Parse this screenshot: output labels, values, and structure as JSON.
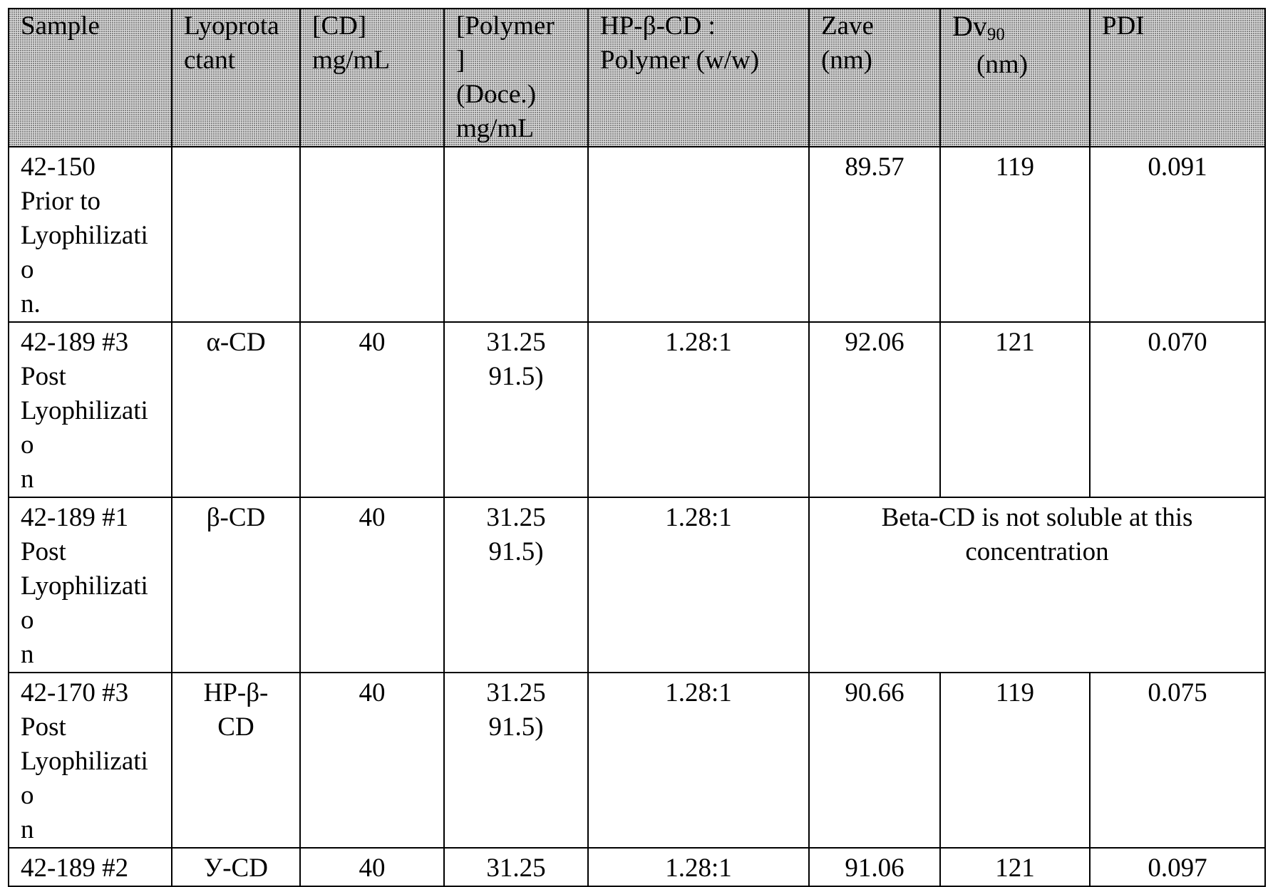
{
  "table": {
    "headers": {
      "sample": "Sample",
      "lyoprotectant_1": "Lyoprota",
      "lyoprotectant_2": "ctant",
      "cd_1": "[CD]",
      "cd_2": "mg/mL",
      "polymer_1": "[Polymer",
      "polymer_2": "]",
      "polymer_3": "(Doce.)",
      "polymer_4": "mg/mL",
      "ratio_1": "HP-β-CD :",
      "ratio_2": "Polymer (w/w)",
      "zave_1": "Zave",
      "zave_2": "(nm)",
      "dv_main": "Dv",
      "dv_sub": "90",
      "dv_unit": "(nm)",
      "pdi": "PDI"
    },
    "rows": [
      {
        "sample_1": "42-150",
        "sample_2": "Prior to",
        "sample_3": "Lyophilizatio",
        "sample_4": "n.",
        "lyoprotectant_1": "",
        "lyoprotectant_2": "",
        "cd": "",
        "polymer_1": "",
        "polymer_2": "",
        "ratio": "",
        "zave": "89.57",
        "dv90": "119",
        "pdi": "0.091"
      },
      {
        "sample_1": "42-189 #3",
        "sample_2": "Post",
        "sample_3": "Lyophilizatio",
        "sample_4": "n",
        "lyoprotectant_1": "α-CD",
        "lyoprotectant_2": "",
        "cd": "40",
        "polymer_1": "31.25",
        "polymer_2": "91.5)",
        "ratio": "1.28:1",
        "zave": "92.06",
        "dv90": "121",
        "pdi": "0.070"
      },
      {
        "sample_1": "42-189 #1",
        "sample_2": "Post",
        "sample_3": "Lyophilizatio",
        "sample_4": "n",
        "lyoprotectant_1": "β-CD",
        "lyoprotectant_2": "",
        "cd": "40",
        "polymer_1": "31.25",
        "polymer_2": "91.5)",
        "ratio": "1.28:1",
        "note_1": "Beta-CD is not soluble at this",
        "note_2": "concentration"
      },
      {
        "sample_1": "42-170 #3",
        "sample_2": "Post",
        "sample_3": "Lyophilizatio",
        "sample_4": "n",
        "lyoprotectant_1": "HP-β-",
        "lyoprotectant_2": "CD",
        "cd": "40",
        "polymer_1": "31.25",
        "polymer_2": "91.5)",
        "ratio": "1.28:1",
        "zave": "90.66",
        "dv90": "119",
        "pdi": "0.075"
      },
      {
        "sample_1": "42-189 #2",
        "lyoprotectant_1": "У-CD",
        "cd": "40",
        "polymer_1": "31.25",
        "ratio": "1.28:1",
        "zave": "91.06",
        "dv90": "121",
        "pdi": "0.097"
      }
    ]
  }
}
